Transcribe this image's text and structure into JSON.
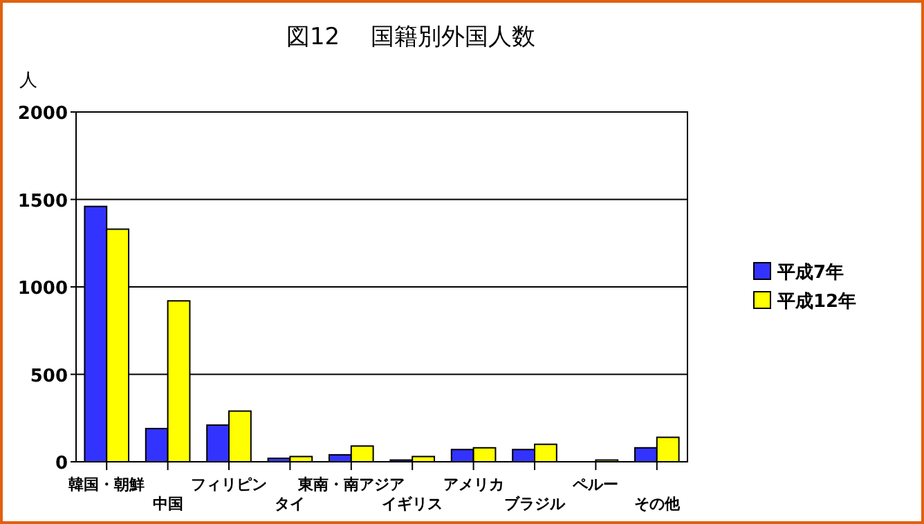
{
  "chart_data": {
    "type": "bar",
    "title": "図12　 国籍別外国人数",
    "ylabel": "人",
    "categories": [
      "韓国・朝鮮",
      "中国",
      "フィリピン",
      "タイ",
      "東南・南アジア",
      "イギリス",
      "アメリカ",
      "ブラジル",
      "ペルー",
      "その他"
    ],
    "series": [
      {
        "name": "平成7年",
        "color": "#3333ff",
        "values": [
          1460,
          190,
          210,
          20,
          40,
          10,
          70,
          70,
          0,
          80
        ]
      },
      {
        "name": "平成12年",
        "color": "#ffff00",
        "values": [
          1330,
          920,
          290,
          30,
          90,
          30,
          80,
          100,
          10,
          140
        ]
      }
    ],
    "ylim": [
      0,
      2000
    ],
    "yticks": [
      0,
      500,
      1000,
      1500,
      2000
    ],
    "grid": "y",
    "legend": "right"
  }
}
